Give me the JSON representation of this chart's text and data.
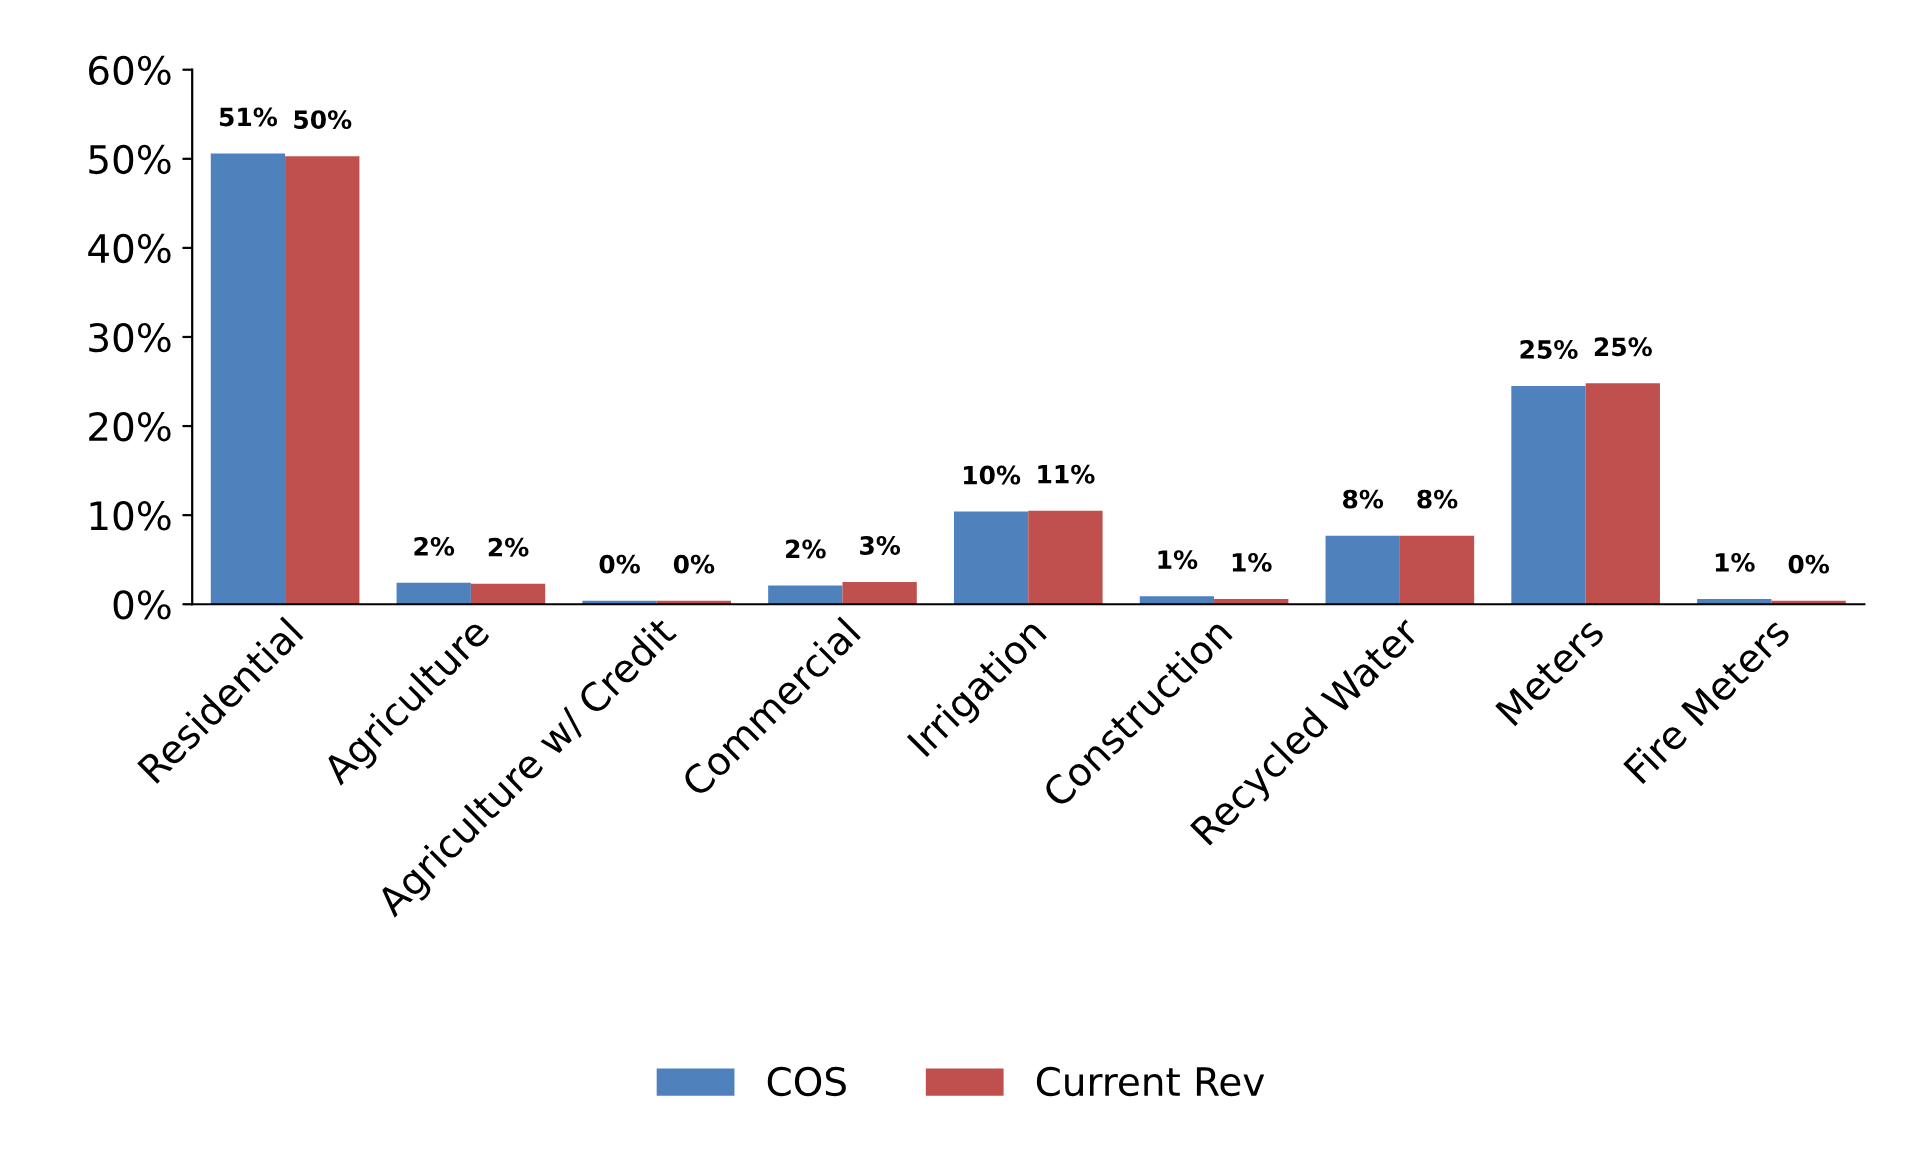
{
  "chart_data": {
    "type": "bar",
    "categories": [
      "Residential",
      "Agriculture",
      "Agriculture w/ Credit",
      "Commercial",
      "Irrigation",
      "Construction",
      "Recycled Water",
      "Meters",
      "Fire Meters"
    ],
    "series": [
      {
        "name": "COS",
        "color": "#4f81bd",
        "values": [
          50.6,
          2.4,
          0.4,
          2.1,
          10.4,
          0.9,
          7.7,
          24.5,
          0.6
        ],
        "value_labels": [
          "51%",
          "2%",
          "0%",
          "2%",
          "10%",
          "1%",
          "8%",
          "25%",
          "1%"
        ]
      },
      {
        "name": "Current Rev",
        "color": "#c0504d",
        "values": [
          50.3,
          2.3,
          0.4,
          2.5,
          10.5,
          0.6,
          7.7,
          24.8,
          0.4
        ],
        "value_labels": [
          "50%",
          "2%",
          "0%",
          "3%",
          "11%",
          "1%",
          "8%",
          "25%",
          "0%"
        ]
      }
    ],
    "ylim": [
      0,
      60
    ],
    "yticks": [
      {
        "value": 0,
        "label": "0%"
      },
      {
        "value": 10,
        "label": "10%"
      },
      {
        "value": 20,
        "label": "20%"
      },
      {
        "value": 30,
        "label": "30%"
      },
      {
        "value": 40,
        "label": "40%"
      },
      {
        "value": 50,
        "label": "50%"
      },
      {
        "value": 60,
        "label": "60%"
      }
    ],
    "legend": "bottom",
    "grid": false
  }
}
